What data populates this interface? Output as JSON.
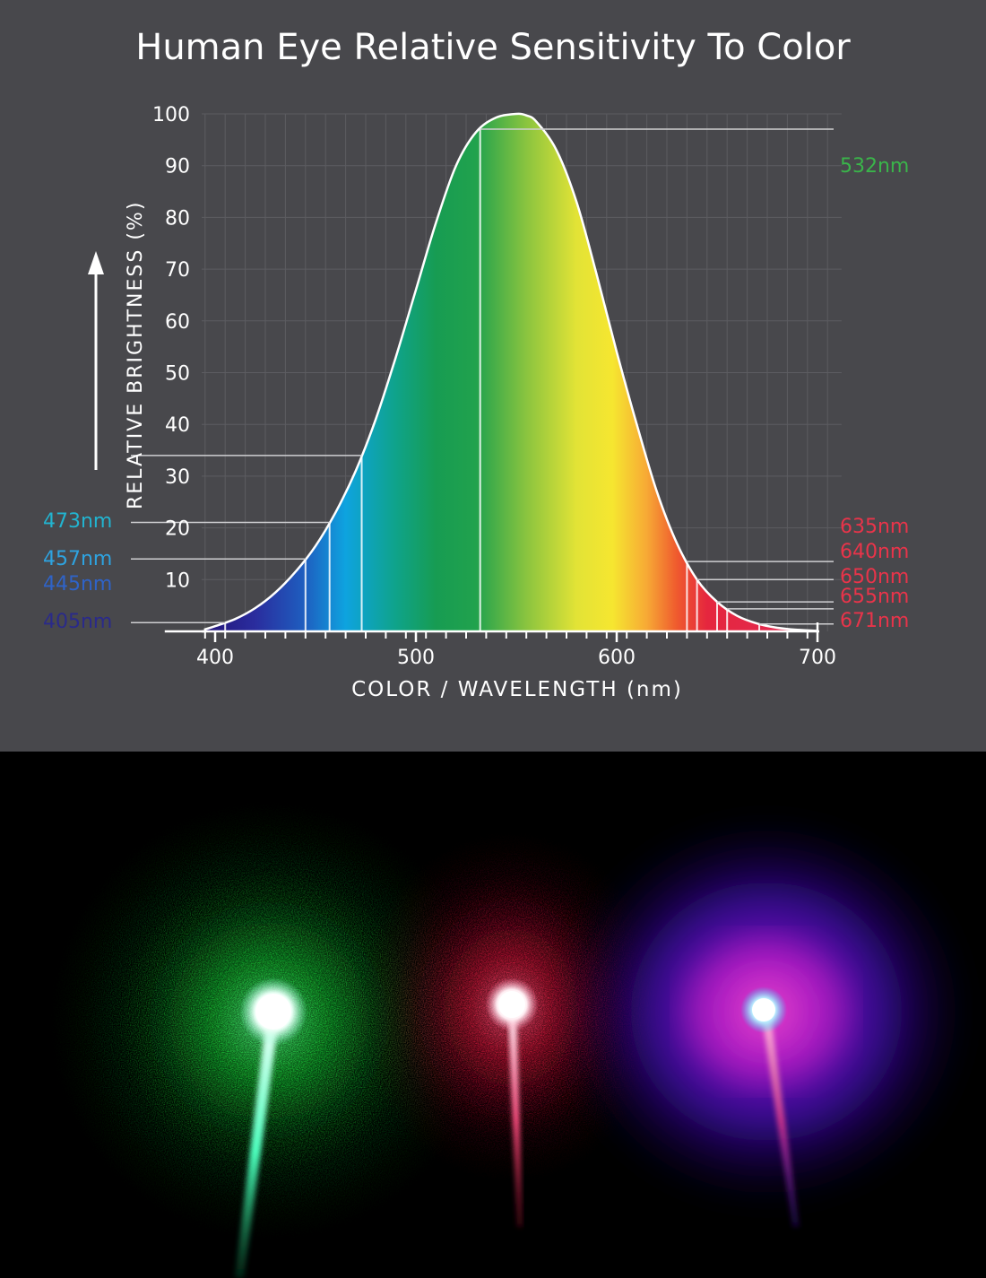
{
  "chart_data": {
    "type": "area",
    "title": "Human Eye Relative Sensitivity To Color",
    "xlabel": "COLOR / WAVELENGTH (nm)",
    "ylabel": "RELATIVE BRIGHTNESS (%)",
    "xlim": [
      375,
      715
    ],
    "ylim": [
      0,
      100
    ],
    "x_ticks": [
      "400",
      "500",
      "600",
      "700"
    ],
    "x_tick_values": [
      400,
      500,
      600,
      700
    ],
    "y_ticks": [
      "100",
      "90",
      "80",
      "70",
      "60",
      "50",
      "40",
      "30",
      "20",
      "10"
    ],
    "y_tick_values": [
      100,
      90,
      80,
      70,
      60,
      50,
      40,
      30,
      20,
      10
    ],
    "grid": true,
    "curve": {
      "x": [
        395,
        400,
        410,
        420,
        430,
        440,
        450,
        460,
        470,
        480,
        490,
        500,
        510,
        520,
        530,
        540,
        550,
        555,
        560,
        570,
        580,
        590,
        600,
        610,
        620,
        630,
        640,
        650,
        660,
        670,
        680,
        690,
        700
      ],
      "y": [
        0.4,
        1,
        2.4,
        4.5,
        7.5,
        11.5,
        16.5,
        23,
        31,
        41,
        53,
        66,
        79,
        90,
        96.5,
        99.3,
        100,
        99.7,
        98.5,
        93,
        83,
        69,
        54,
        40,
        27,
        17,
        10,
        5.7,
        3,
        1.5,
        0.7,
        0.3,
        0.1
      ]
    },
    "markers": [
      {
        "label": "405nm",
        "wavelength": 405,
        "side": "left",
        "color": "#2a2a8a"
      },
      {
        "label": "445nm",
        "wavelength": 445,
        "side": "left",
        "color": "#2f63c8"
      },
      {
        "label": "457nm",
        "wavelength": 457,
        "side": "left",
        "color": "#2ea3e0"
      },
      {
        "label": "473nm",
        "wavelength": 473,
        "side": "left",
        "color": "#22b4d0"
      },
      {
        "label": "532nm",
        "wavelength": 532,
        "side": "right",
        "color": "#3ab54a"
      },
      {
        "label": "635nm",
        "wavelength": 635,
        "side": "right",
        "color": "#e8344a"
      },
      {
        "label": "640nm",
        "wavelength": 640,
        "side": "right",
        "color": "#e8344a"
      },
      {
        "label": "650nm",
        "wavelength": 650,
        "side": "right",
        "color": "#e8344a"
      },
      {
        "label": "655nm",
        "wavelength": 655,
        "side": "right",
        "color": "#e8344a"
      },
      {
        "label": "671nm",
        "wavelength": 671,
        "side": "right",
        "color": "#e8344a"
      }
    ],
    "spectrum_stops": [
      {
        "nm": 395,
        "color": "#23147a"
      },
      {
        "nm": 420,
        "color": "#2a2d9e"
      },
      {
        "nm": 445,
        "color": "#1e5fc0"
      },
      {
        "nm": 465,
        "color": "#0ea3df"
      },
      {
        "nm": 490,
        "color": "#0fa38a"
      },
      {
        "nm": 510,
        "color": "#179c52"
      },
      {
        "nm": 530,
        "color": "#21a24d"
      },
      {
        "nm": 555,
        "color": "#8ac43f"
      },
      {
        "nm": 580,
        "color": "#e2e336"
      },
      {
        "nm": 598,
        "color": "#f6e630"
      },
      {
        "nm": 615,
        "color": "#f7a935"
      },
      {
        "nm": 630,
        "color": "#ef5a2e"
      },
      {
        "nm": 645,
        "color": "#e5263e"
      },
      {
        "nm": 700,
        "color": "#e12a57"
      }
    ],
    "colors": {
      "background": "#48484c",
      "grid": "#5c5c61",
      "axis_text": "#ffffff",
      "curve_outline": "#ffffff"
    }
  },
  "photo": {
    "description_free": true,
    "spots": [
      {
        "color": "#18e23a",
        "core": "#d9fff0",
        "halo": "#19c22f",
        "beam": "#5fffc0"
      },
      {
        "color": "#e2173d",
        "core": "#ffe6ee",
        "halo": "#d91b43",
        "beam": "#ff5e8a"
      },
      {
        "color": "#3a10d6",
        "core": "#e6f8ff",
        "halo": "#5a1be0",
        "beam": "#c0368a"
      }
    ]
  }
}
